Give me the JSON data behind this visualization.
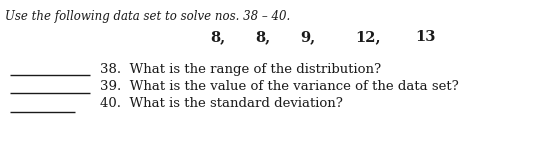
{
  "title": "Use the following data set to solve nos. 38 – 40.",
  "data_items": [
    [
      "8,",
      "8,",
      "9,",
      "12,",
      "13"
    ]
  ],
  "q38": "38.  What is the range of the distribution?",
  "q39": "39.  What is the value of the variance of the data set?",
  "q40": "40.  What is the standard deviation?",
  "bg_color": "#ffffff",
  "text_color": "#1a1a1a",
  "font_size_title": 8.5,
  "font_size_data": 10.5,
  "font_size_q": 9.5
}
